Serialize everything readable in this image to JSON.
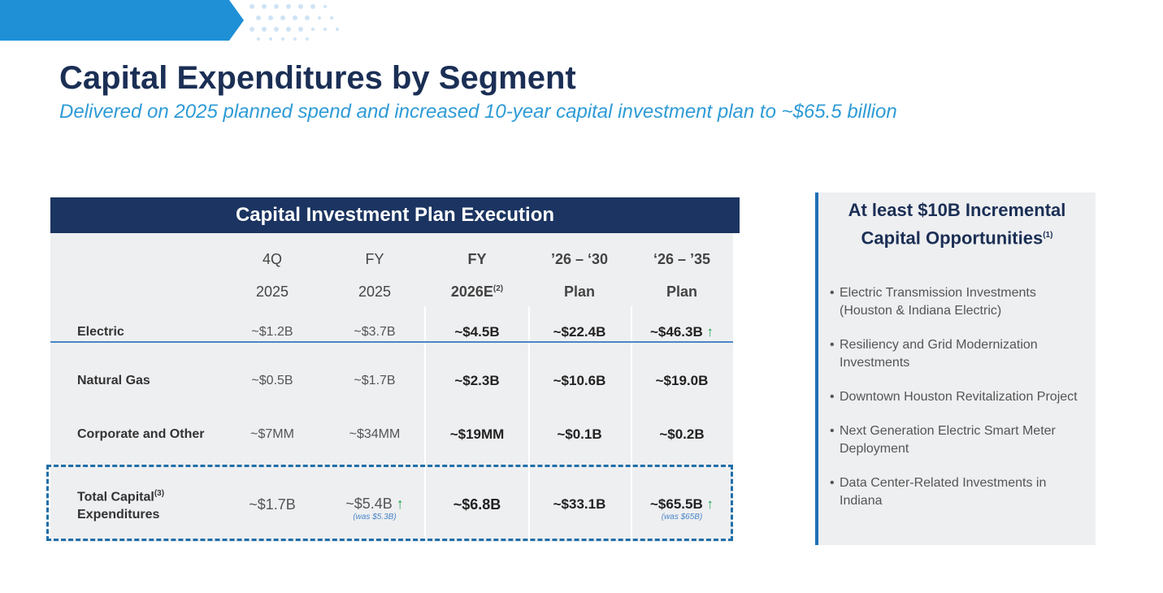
{
  "header": {
    "title": "Capital Expenditures by Segment",
    "subtitle": "Delivered on 2025 planned spend and increased 10-year capital investment plan to ~$65.5 billion"
  },
  "table": {
    "title": "Capital Investment Plan Execution",
    "columns": [
      {
        "line1": "4Q",
        "line2": "2025"
      },
      {
        "line1": "FY",
        "line2": "2025"
      },
      {
        "line1": "FY",
        "line2": "2026E",
        "note": "(2)"
      },
      {
        "line1": "’26 – ‘30",
        "line2": "Plan"
      },
      {
        "line1": "‘26 – ’35",
        "line2": "Plan"
      }
    ],
    "rows": [
      {
        "label": "Electric",
        "cells": [
          "~$1.2B",
          "~$3.7B",
          "~$4.5B",
          "~$22.4B",
          "~$46.3B"
        ]
      },
      {
        "label": "Natural Gas",
        "cells": [
          "~$0.5B",
          "~$1.7B",
          "~$2.3B",
          "~$10.6B",
          "~$19.0B"
        ]
      },
      {
        "label": "Corporate and Other",
        "cells": [
          "~$7MM",
          "~$34MM",
          "~$19MM",
          "~$0.1B",
          "~$0.2B"
        ]
      }
    ],
    "total": {
      "label_line1": "Total Capital",
      "note": "(3)",
      "label_line2": "Expenditures",
      "cells": [
        "~$1.7B",
        "~$5.4B",
        "~$6.8B",
        "~$33.1B",
        "~$65.5B"
      ],
      "was_fy2025": "(was $5.3B)",
      "was_plan35": "(was $65B)"
    }
  },
  "sidebar": {
    "title_line1": "At least $10B Incremental",
    "title_line2": "Capital Opportunities",
    "title_note": "(1)",
    "items": [
      "Electric Transmission Investments (Houston & Indiana Electric)",
      "Resiliency and Grid Modernization Investments",
      "Downtown Houston Revitalization Project",
      "Next Generation Electric Smart Meter Deployment",
      "Data Center-Related Investments in Indiana"
    ]
  }
}
